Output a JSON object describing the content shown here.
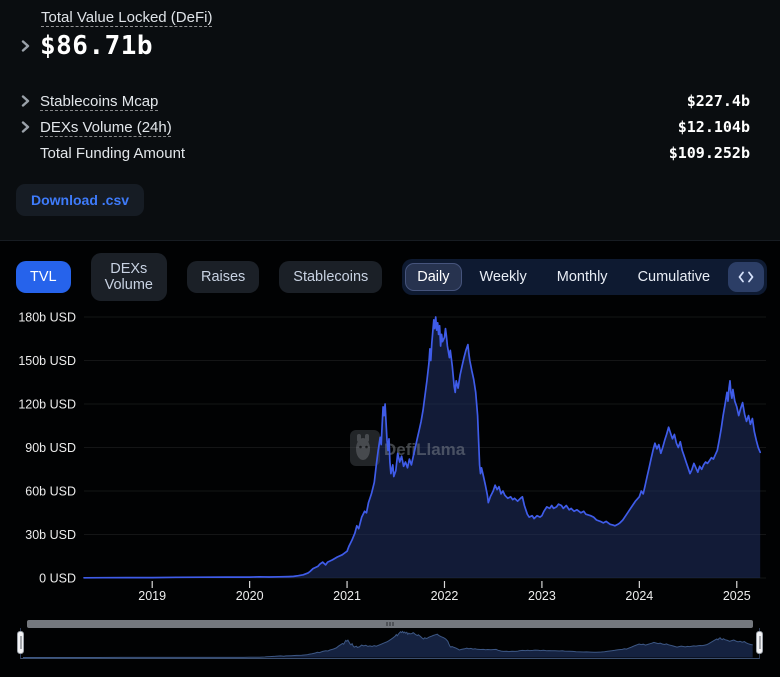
{
  "stats": {
    "title": "Total Value Locked (DeFi)",
    "main_value": "$86.71b",
    "rows": [
      {
        "label": "Stablecoins Mcap",
        "value": "$227.4b",
        "has_chevron": true,
        "dashed": true
      },
      {
        "label": "DEXs Volume (24h)",
        "value": "$12.104b",
        "has_chevron": true,
        "dashed": true
      },
      {
        "label": "Total Funding Amount",
        "value": "$109.252b",
        "has_chevron": false,
        "dashed": false
      }
    ],
    "download_label": "Download .csv"
  },
  "toolbar": {
    "dataset_tabs": [
      {
        "label": "TVL",
        "active": true
      },
      {
        "label": "DEXs Volume",
        "active": false
      },
      {
        "label": "Raises",
        "active": false
      },
      {
        "label": "Stablecoins",
        "active": false
      }
    ],
    "interval_tabs": [
      {
        "label": "Daily",
        "active": true
      },
      {
        "label": "Weekly",
        "active": false
      },
      {
        "label": "Monthly",
        "active": false
      },
      {
        "label": "Cumulative",
        "active": false
      }
    ]
  },
  "watermark": {
    "text": "DefiLlama",
    "icon": "defillama-llama-logo"
  },
  "colors": {
    "accent_blue": "#2663eb",
    "line_blue": "#3f5ce9",
    "area_fill": "rgba(32,49,99,0.55)",
    "link_blue": "#3e7bfa",
    "grid": "rgba(255,255,255,0.08)",
    "axis_text": "#ececec"
  },
  "chart_data": {
    "type": "area",
    "title": "Total Value Locked (DeFi)",
    "series_name": "TVL",
    "unit": "b USD",
    "x_range": [
      2018.3,
      2025.3
    ],
    "y_ticks": [
      0,
      30,
      60,
      90,
      120,
      150,
      180
    ],
    "y_tick_labels": [
      "0 USD",
      "30b USD",
      "60b USD",
      "90b USD",
      "120b USD",
      "150b USD",
      "180b USD"
    ],
    "x_ticks": [
      2019,
      2020,
      2021,
      2022,
      2023,
      2024,
      2025
    ],
    "grid": "horizontal",
    "legend": "none",
    "points": [
      [
        2018.3,
        0.15
      ],
      [
        2018.5,
        0.2
      ],
      [
        2018.75,
        0.25
      ],
      [
        2019.0,
        0.3
      ],
      [
        2019.25,
        0.45
      ],
      [
        2019.5,
        0.55
      ],
      [
        2019.75,
        0.6
      ],
      [
        2020.0,
        0.65
      ],
      [
        2020.1,
        0.8
      ],
      [
        2020.2,
        0.7
      ],
      [
        2020.3,
        0.8
      ],
      [
        2020.4,
        0.95
      ],
      [
        2020.45,
        1.1
      ],
      [
        2020.5,
        1.6
      ],
      [
        2020.55,
        2.2
      ],
      [
        2020.6,
        3.5
      ],
      [
        2020.62,
        4.5
      ],
      [
        2020.65,
        6.5
      ],
      [
        2020.7,
        8.0
      ],
      [
        2020.72,
        9.5
      ],
      [
        2020.75,
        11.0
      ],
      [
        2020.78,
        9.0
      ],
      [
        2020.8,
        11.0
      ],
      [
        2020.85,
        12.5
      ],
      [
        2020.9,
        14.5
      ],
      [
        2020.95,
        16.0
      ],
      [
        2021.0,
        18.5
      ],
      [
        2021.02,
        22
      ],
      [
        2021.05,
        26
      ],
      [
        2021.08,
        31
      ],
      [
        2021.1,
        36
      ],
      [
        2021.12,
        34
      ],
      [
        2021.15,
        42
      ],
      [
        2021.18,
        46
      ],
      [
        2021.2,
        45
      ],
      [
        2021.22,
        52
      ],
      [
        2021.25,
        58
      ],
      [
        2021.28,
        66
      ],
      [
        2021.3,
        78
      ],
      [
        2021.32,
        88
      ],
      [
        2021.34,
        97
      ],
      [
        2021.35,
        92
      ],
      [
        2021.36,
        105
      ],
      [
        2021.37,
        118
      ],
      [
        2021.38,
        112
      ],
      [
        2021.39,
        120
      ],
      [
        2021.4,
        108
      ],
      [
        2021.41,
        95
      ],
      [
        2021.42,
        88
      ],
      [
        2021.43,
        96
      ],
      [
        2021.44,
        80
      ],
      [
        2021.45,
        72
      ],
      [
        2021.47,
        78
      ],
      [
        2021.48,
        70
      ],
      [
        2021.5,
        74
      ],
      [
        2021.52,
        86
      ],
      [
        2021.54,
        80
      ],
      [
        2021.56,
        84
      ],
      [
        2021.58,
        77
      ],
      [
        2021.6,
        80
      ],
      [
        2021.62,
        76
      ],
      [
        2021.64,
        82
      ],
      [
        2021.66,
        78
      ],
      [
        2021.68,
        84
      ],
      [
        2021.7,
        90
      ],
      [
        2021.72,
        96
      ],
      [
        2021.74,
        102
      ],
      [
        2021.76,
        108
      ],
      [
        2021.78,
        116
      ],
      [
        2021.8,
        126
      ],
      [
        2021.82,
        136
      ],
      [
        2021.84,
        148
      ],
      [
        2021.85,
        158
      ],
      [
        2021.86,
        150
      ],
      [
        2021.87,
        162
      ],
      [
        2021.88,
        170
      ],
      [
        2021.89,
        178
      ],
      [
        2021.9,
        172
      ],
      [
        2021.91,
        180
      ],
      [
        2021.92,
        171
      ],
      [
        2021.93,
        176
      ],
      [
        2021.94,
        168
      ],
      [
        2021.95,
        174
      ],
      [
        2021.96,
        160
      ],
      [
        2021.97,
        168
      ],
      [
        2021.98,
        163
      ],
      [
        2022.0,
        166
      ],
      [
        2022.01,
        172
      ],
      [
        2022.02,
        167
      ],
      [
        2022.03,
        160
      ],
      [
        2022.05,
        152
      ],
      [
        2022.06,
        157
      ],
      [
        2022.08,
        146
      ],
      [
        2022.1,
        132
      ],
      [
        2022.11,
        128
      ],
      [
        2022.12,
        136
      ],
      [
        2022.14,
        131
      ],
      [
        2022.16,
        140
      ],
      [
        2022.18,
        146
      ],
      [
        2022.2,
        152
      ],
      [
        2022.22,
        157
      ],
      [
        2022.24,
        161
      ],
      [
        2022.25,
        155
      ],
      [
        2022.26,
        150
      ],
      [
        2022.28,
        143
      ],
      [
        2022.3,
        137
      ],
      [
        2022.32,
        128
      ],
      [
        2022.34,
        112
      ],
      [
        2022.35,
        95
      ],
      [
        2022.36,
        78
      ],
      [
        2022.37,
        72
      ],
      [
        2022.38,
        76
      ],
      [
        2022.4,
        70
      ],
      [
        2022.42,
        64
      ],
      [
        2022.44,
        57
      ],
      [
        2022.45,
        52
      ],
      [
        2022.47,
        56
      ],
      [
        2022.5,
        60
      ],
      [
        2022.52,
        64
      ],
      [
        2022.54,
        61
      ],
      [
        2022.56,
        63
      ],
      [
        2022.58,
        58
      ],
      [
        2022.6,
        60
      ],
      [
        2022.62,
        57
      ],
      [
        2022.65,
        55
      ],
      [
        2022.68,
        56
      ],
      [
        2022.7,
        54
      ],
      [
        2022.72,
        55
      ],
      [
        2022.75,
        53
      ],
      [
        2022.78,
        55
      ],
      [
        2022.8,
        56
      ],
      [
        2022.82,
        50
      ],
      [
        2022.85,
        44
      ],
      [
        2022.87,
        42
      ],
      [
        2022.9,
        43
      ],
      [
        2022.92,
        41
      ],
      [
        2022.95,
        43
      ],
      [
        2022.98,
        42
      ],
      [
        2023.0,
        43
      ],
      [
        2023.02,
        46
      ],
      [
        2023.05,
        49
      ],
      [
        2023.08,
        48
      ],
      [
        2023.1,
        50
      ],
      [
        2023.12,
        48
      ],
      [
        2023.15,
        49
      ],
      [
        2023.17,
        51
      ],
      [
        2023.2,
        50
      ],
      [
        2023.22,
        48
      ],
      [
        2023.25,
        50
      ],
      [
        2023.28,
        47
      ],
      [
        2023.3,
        48
      ],
      [
        2023.33,
        46
      ],
      [
        2023.36,
        47
      ],
      [
        2023.4,
        45
      ],
      [
        2023.43,
        46
      ],
      [
        2023.45,
        44
      ],
      [
        2023.5,
        43
      ],
      [
        2023.53,
        42
      ],
      [
        2023.56,
        40
      ],
      [
        2023.6,
        39
      ],
      [
        2023.63,
        38
      ],
      [
        2023.66,
        39
      ],
      [
        2023.7,
        37
      ],
      [
        2023.73,
        36.5
      ],
      [
        2023.75,
        36
      ],
      [
        2023.78,
        37
      ],
      [
        2023.8,
        38
      ],
      [
        2023.83,
        40
      ],
      [
        2023.86,
        43
      ],
      [
        2023.9,
        47
      ],
      [
        2023.93,
        50
      ],
      [
        2023.96,
        53
      ],
      [
        2024.0,
        56
      ],
      [
        2024.02,
        60
      ],
      [
        2024.04,
        58
      ],
      [
        2024.06,
        64
      ],
      [
        2024.08,
        70
      ],
      [
        2024.1,
        76
      ],
      [
        2024.12,
        82
      ],
      [
        2024.14,
        88
      ],
      [
        2024.16,
        93
      ],
      [
        2024.18,
        89
      ],
      [
        2024.2,
        92
      ],
      [
        2024.22,
        86
      ],
      [
        2024.24,
        90
      ],
      [
        2024.26,
        95
      ],
      [
        2024.28,
        99
      ],
      [
        2024.3,
        104
      ],
      [
        2024.32,
        100
      ],
      [
        2024.34,
        96
      ],
      [
        2024.36,
        99
      ],
      [
        2024.38,
        93
      ],
      [
        2024.4,
        90
      ],
      [
        2024.42,
        94
      ],
      [
        2024.44,
        88
      ],
      [
        2024.46,
        84
      ],
      [
        2024.48,
        80
      ],
      [
        2024.5,
        76
      ],
      [
        2024.52,
        72
      ],
      [
        2024.54,
        75
      ],
      [
        2024.56,
        79
      ],
      [
        2024.58,
        76
      ],
      [
        2024.6,
        73
      ],
      [
        2024.62,
        77
      ],
      [
        2024.64,
        75
      ],
      [
        2024.66,
        78
      ],
      [
        2024.68,
        80
      ],
      [
        2024.7,
        79
      ],
      [
        2024.72,
        81
      ],
      [
        2024.74,
        83
      ],
      [
        2024.76,
        82
      ],
      [
        2024.78,
        85
      ],
      [
        2024.8,
        88
      ],
      [
        2024.82,
        95
      ],
      [
        2024.84,
        103
      ],
      [
        2024.86,
        112
      ],
      [
        2024.88,
        120
      ],
      [
        2024.9,
        128
      ],
      [
        2024.91,
        122
      ],
      [
        2024.92,
        131
      ],
      [
        2024.93,
        136
      ],
      [
        2024.94,
        128
      ],
      [
        2024.95,
        124
      ],
      [
        2024.96,
        130
      ],
      [
        2024.98,
        122
      ],
      [
        2025.0,
        118
      ],
      [
        2025.02,
        112
      ],
      [
        2025.04,
        117
      ],
      [
        2025.06,
        121
      ],
      [
        2025.08,
        113
      ],
      [
        2025.1,
        108
      ],
      [
        2025.12,
        112
      ],
      [
        2025.14,
        106
      ],
      [
        2025.16,
        110
      ],
      [
        2025.18,
        101
      ],
      [
        2025.2,
        95
      ],
      [
        2025.22,
        90
      ],
      [
        2025.24,
        86.71
      ]
    ]
  }
}
